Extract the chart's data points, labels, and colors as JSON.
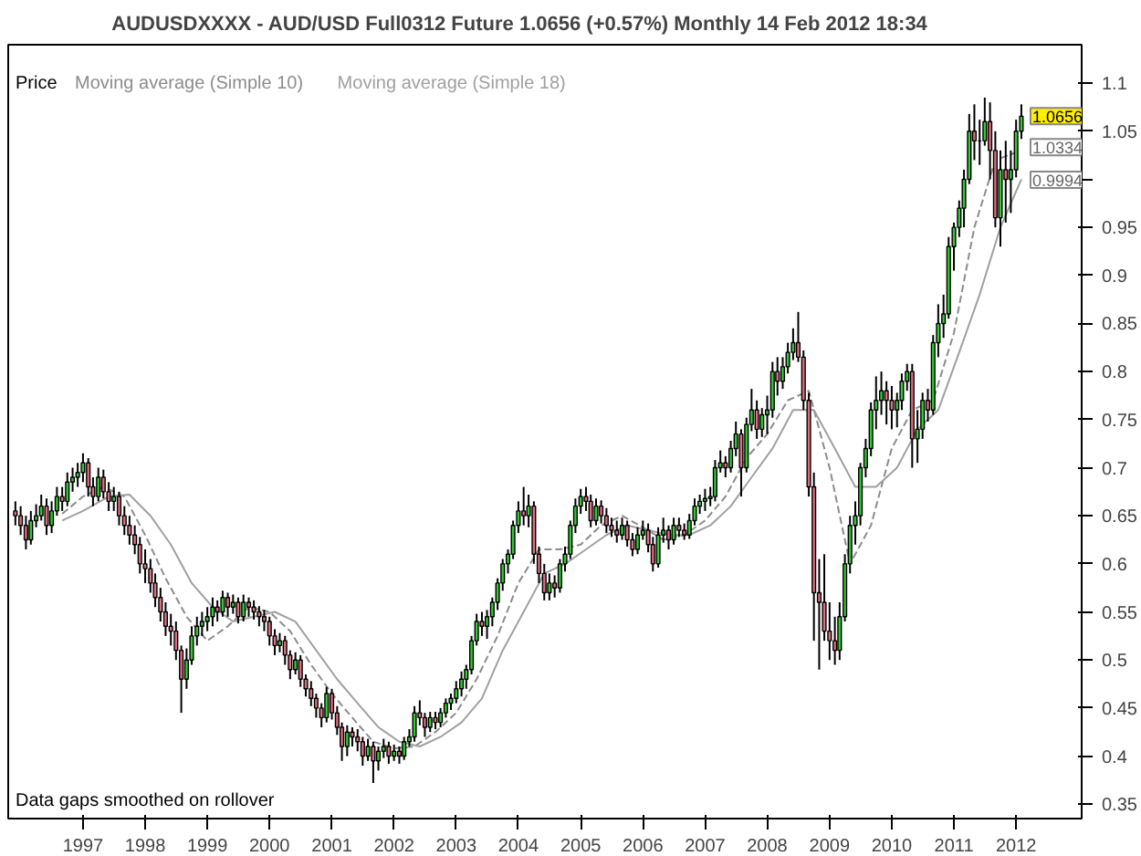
{
  "chart_data": {
    "type": "candlestick",
    "title": "AUDUSDXXXX - AUD/USD Full0312 Future     1.0656 (+0.57%)     Monthly  14 Feb 2012 18:34",
    "legend": "top left",
    "xlim": [
      "1995-10-20",
      "2013-01-20"
    ],
    "xticks": [
      "1997",
      "1998",
      "1999",
      "2000",
      "2001",
      "2002",
      "2003",
      "2004",
      "2005",
      "2006",
      "2007",
      "2008",
      "2009",
      "2010",
      "2011",
      "2012"
    ],
    "ylim": [
      0.335,
      1.14
    ],
    "yticks": [
      0.35,
      0.4,
      0.45,
      0.5,
      0.55,
      0.6,
      0.65,
      0.7,
      0.75,
      0.8,
      0.85,
      0.9,
      0.95,
      {
        "value": 1,
        "label": null
      },
      1.05,
      1.1
    ],
    "grid": false,
    "annotations": [
      "Data gaps smoothed on rollover",
      {
        "text": "1.0656",
        "x": "2012-02",
        "y": 1.0656
      },
      {
        "text": "1.0334",
        "x": "2012-02",
        "y": 1.0334
      },
      {
        "text": "0.9994",
        "x": "2012-02",
        "y": 0.9994
      }
    ],
    "series": [
      {
        "name": "Price",
        "x": [
          "1995-12",
          "1996-01",
          "1996-02",
          "1996-03",
          "1996-04",
          "1996-05",
          "1996-06",
          "1996-07",
          "1996-08",
          "1996-09",
          "1996-10",
          "1996-11",
          "1996-12",
          "1997-01",
          "1997-02",
          "1997-03",
          "1997-04",
          "1997-05",
          "1997-06",
          "1997-07",
          "1997-08",
          "1997-09",
          "1997-10",
          "1997-11",
          "1997-12",
          "1998-01",
          "1998-02",
          "1998-03",
          "1998-04",
          "1998-05",
          "1998-06",
          "1998-07",
          "1998-08",
          "1998-09",
          "1998-10",
          "1998-11",
          "1998-12",
          "1999-01",
          "1999-02",
          "1999-03",
          "1999-04",
          "1999-05",
          "1999-06",
          "1999-07",
          "1999-08",
          "1999-09",
          "1999-10",
          "1999-11",
          "1999-12",
          "2000-01",
          "2000-02",
          "2000-03",
          "2000-04",
          "2000-05",
          "2000-06",
          "2000-07",
          "2000-08",
          "2000-09",
          "2000-10",
          "2000-11",
          "2000-12",
          "2001-01",
          "2001-02",
          "2001-03",
          "2001-04",
          "2001-05",
          "2001-06",
          "2001-07",
          "2001-08",
          "2001-09",
          "2001-10",
          "2001-11",
          "2001-12",
          "2002-01",
          "2002-02",
          "2002-03",
          "2002-04",
          "2002-05",
          "2002-06",
          "2002-07",
          "2002-08",
          "2002-09",
          "2002-10",
          "2002-11",
          "2002-12",
          "2003-01",
          "2003-02",
          "2003-03",
          "2003-04",
          "2003-05",
          "2003-06",
          "2003-07",
          "2003-08",
          "2003-09",
          "2003-10",
          "2003-11",
          "2003-12",
          "2004-01",
          "2004-02",
          "2004-03",
          "2004-04",
          "2004-05",
          "2004-06",
          "2004-07",
          "2004-08",
          "2004-09",
          "2004-10",
          "2004-11",
          "2004-12",
          "2005-01",
          "2005-02",
          "2005-03",
          "2005-04",
          "2005-05",
          "2005-06",
          "2005-07",
          "2005-08",
          "2005-09",
          "2005-10",
          "2005-11",
          "2005-12",
          "2006-01",
          "2006-02",
          "2006-03",
          "2006-04",
          "2006-05",
          "2006-06",
          "2006-07",
          "2006-08",
          "2006-09",
          "2006-10",
          "2006-11",
          "2006-12",
          "2007-01",
          "2007-02",
          "2007-03",
          "2007-04",
          "2007-05",
          "2007-06",
          "2007-07",
          "2007-08",
          "2007-09",
          "2007-10",
          "2007-11",
          "2007-12",
          "2008-01",
          "2008-02",
          "2008-03",
          "2008-04",
          "2008-05",
          "2008-06",
          "2008-07",
          "2008-08",
          "2008-09",
          "2008-10",
          "2008-11",
          "2008-12",
          "2009-01",
          "2009-02",
          "2009-03",
          "2009-04",
          "2009-05",
          "2009-06",
          "2009-07",
          "2009-08",
          "2009-09",
          "2009-10",
          "2009-11",
          "2009-12",
          "2010-01",
          "2010-02",
          "2010-03",
          "2010-04",
          "2010-05",
          "2010-06",
          "2010-07",
          "2010-08",
          "2010-09",
          "2010-10",
          "2010-11",
          "2010-12",
          "2011-01",
          "2011-02",
          "2011-03",
          "2011-04",
          "2011-05",
          "2011-06",
          "2011-07",
          "2011-08",
          "2011-09",
          "2011-10",
          "2011-11",
          "2011-12",
          "2012-01",
          "2012-02"
        ],
        "ohlc": [
          [
            0.655,
            0.665,
            0.64,
            0.65
          ],
          [
            0.65,
            0.66,
            0.63,
            0.64
          ],
          [
            0.64,
            0.65,
            0.615,
            0.625
          ],
          [
            0.625,
            0.655,
            0.62,
            0.645
          ],
          [
            0.645,
            0.662,
            0.638,
            0.65
          ],
          [
            0.65,
            0.672,
            0.645,
            0.66
          ],
          [
            0.66,
            0.668,
            0.63,
            0.64
          ],
          [
            0.64,
            0.665,
            0.632,
            0.655
          ],
          [
            0.655,
            0.68,
            0.65,
            0.67
          ],
          [
            0.67,
            0.68,
            0.655,
            0.665
          ],
          [
            0.665,
            0.695,
            0.66,
            0.685
          ],
          [
            0.685,
            0.7,
            0.675,
            0.69
          ],
          [
            0.69,
            0.705,
            0.68,
            0.695
          ],
          [
            0.695,
            0.715,
            0.685,
            0.705
          ],
          [
            0.705,
            0.71,
            0.67,
            0.68
          ],
          [
            0.68,
            0.69,
            0.66,
            0.67
          ],
          [
            0.67,
            0.7,
            0.665,
            0.69
          ],
          [
            0.69,
            0.698,
            0.668,
            0.675
          ],
          [
            0.675,
            0.685,
            0.655,
            0.665
          ],
          [
            0.665,
            0.68,
            0.655,
            0.67
          ],
          [
            0.67,
            0.675,
            0.64,
            0.65
          ],
          [
            0.65,
            0.66,
            0.63,
            0.64
          ],
          [
            0.64,
            0.65,
            0.62,
            0.63
          ],
          [
            0.63,
            0.64,
            0.61,
            0.62
          ],
          [
            0.62,
            0.628,
            0.59,
            0.6
          ],
          [
            0.6,
            0.615,
            0.58,
            0.595
          ],
          [
            0.595,
            0.605,
            0.57,
            0.58
          ],
          [
            0.58,
            0.59,
            0.555,
            0.565
          ],
          [
            0.565,
            0.575,
            0.54,
            0.55
          ],
          [
            0.55,
            0.56,
            0.525,
            0.535
          ],
          [
            0.535,
            0.548,
            0.515,
            0.53
          ],
          [
            0.53,
            0.54,
            0.5,
            0.51
          ],
          [
            0.51,
            0.515,
            0.445,
            0.48
          ],
          [
            0.48,
            0.512,
            0.47,
            0.5
          ],
          [
            0.5,
            0.535,
            0.495,
            0.525
          ],
          [
            0.525,
            0.545,
            0.515,
            0.535
          ],
          [
            0.535,
            0.55,
            0.525,
            0.54
          ],
          [
            0.54,
            0.555,
            0.53,
            0.545
          ],
          [
            0.545,
            0.565,
            0.535,
            0.555
          ],
          [
            0.555,
            0.562,
            0.54,
            0.55
          ],
          [
            0.55,
            0.572,
            0.545,
            0.565
          ],
          [
            0.565,
            0.57,
            0.545,
            0.555
          ],
          [
            0.555,
            0.568,
            0.548,
            0.56
          ],
          [
            0.56,
            0.565,
            0.538,
            0.545
          ],
          [
            0.545,
            0.568,
            0.54,
            0.56
          ],
          [
            0.56,
            0.565,
            0.545,
            0.555
          ],
          [
            0.555,
            0.562,
            0.542,
            0.55
          ],
          [
            0.55,
            0.556,
            0.535,
            0.545
          ],
          [
            0.545,
            0.552,
            0.53,
            0.54
          ],
          [
            0.54,
            0.545,
            0.515,
            0.525
          ],
          [
            0.525,
            0.532,
            0.505,
            0.515
          ],
          [
            0.515,
            0.528,
            0.508,
            0.52
          ],
          [
            0.52,
            0.525,
            0.495,
            0.505
          ],
          [
            0.505,
            0.51,
            0.48,
            0.49
          ],
          [
            0.49,
            0.508,
            0.485,
            0.5
          ],
          [
            0.5,
            0.505,
            0.472,
            0.48
          ],
          [
            0.48,
            0.485,
            0.462,
            0.47
          ],
          [
            0.47,
            0.478,
            0.452,
            0.46
          ],
          [
            0.46,
            0.465,
            0.44,
            0.45
          ],
          [
            0.45,
            0.455,
            0.43,
            0.44
          ],
          [
            0.44,
            0.472,
            0.435,
            0.465
          ],
          [
            0.465,
            0.47,
            0.438,
            0.445
          ],
          [
            0.445,
            0.452,
            0.422,
            0.43
          ],
          [
            0.43,
            0.435,
            0.395,
            0.41
          ],
          [
            0.41,
            0.432,
            0.4,
            0.425
          ],
          [
            0.425,
            0.43,
            0.41,
            0.42
          ],
          [
            0.42,
            0.428,
            0.405,
            0.415
          ],
          [
            0.415,
            0.42,
            0.39,
            0.4
          ],
          [
            0.4,
            0.418,
            0.395,
            0.41
          ],
          [
            0.41,
            0.415,
            0.372,
            0.395
          ],
          [
            0.395,
            0.41,
            0.385,
            0.405
          ],
          [
            0.405,
            0.418,
            0.398,
            0.41
          ],
          [
            0.41,
            0.415,
            0.392,
            0.4
          ],
          [
            0.4,
            0.412,
            0.395,
            0.405
          ],
          [
            0.405,
            0.41,
            0.392,
            0.4
          ],
          [
            0.4,
            0.42,
            0.396,
            0.415
          ],
          [
            0.415,
            0.428,
            0.41,
            0.42
          ],
          [
            0.42,
            0.452,
            0.415,
            0.445
          ],
          [
            0.445,
            0.458,
            0.432,
            0.44
          ],
          [
            0.44,
            0.445,
            0.42,
            0.43
          ],
          [
            0.43,
            0.446,
            0.425,
            0.44
          ],
          [
            0.44,
            0.446,
            0.428,
            0.435
          ],
          [
            0.435,
            0.45,
            0.43,
            0.445
          ],
          [
            0.445,
            0.46,
            0.44,
            0.455
          ],
          [
            0.455,
            0.465,
            0.448,
            0.46
          ],
          [
            0.46,
            0.478,
            0.455,
            0.47
          ],
          [
            0.47,
            0.488,
            0.462,
            0.48
          ],
          [
            0.48,
            0.495,
            0.47,
            0.49
          ],
          [
            0.49,
            0.525,
            0.485,
            0.52
          ],
          [
            0.52,
            0.548,
            0.515,
            0.54
          ],
          [
            0.54,
            0.55,
            0.525,
            0.535
          ],
          [
            0.535,
            0.552,
            0.522,
            0.545
          ],
          [
            0.545,
            0.565,
            0.535,
            0.56
          ],
          [
            0.56,
            0.585,
            0.552,
            0.58
          ],
          [
            0.58,
            0.605,
            0.572,
            0.6
          ],
          [
            0.6,
            0.615,
            0.59,
            0.61
          ],
          [
            0.61,
            0.645,
            0.605,
            0.64
          ],
          [
            0.64,
            0.665,
            0.632,
            0.655
          ],
          [
            0.655,
            0.68,
            0.64,
            0.65
          ],
          [
            0.65,
            0.672,
            0.638,
            0.66
          ],
          [
            0.66,
            0.665,
            0.6,
            0.61
          ],
          [
            0.61,
            0.618,
            0.58,
            0.59
          ],
          [
            0.59,
            0.6,
            0.562,
            0.57
          ],
          [
            0.57,
            0.59,
            0.562,
            0.58
          ],
          [
            0.58,
            0.588,
            0.565,
            0.575
          ],
          [
            0.575,
            0.605,
            0.57,
            0.6
          ],
          [
            0.6,
            0.618,
            0.592,
            0.61
          ],
          [
            0.61,
            0.645,
            0.605,
            0.64
          ],
          [
            0.64,
            0.668,
            0.632,
            0.66
          ],
          [
            0.66,
            0.678,
            0.652,
            0.67
          ],
          [
            0.67,
            0.68,
            0.655,
            0.665
          ],
          [
            0.665,
            0.672,
            0.638,
            0.645
          ],
          [
            0.645,
            0.668,
            0.64,
            0.66
          ],
          [
            0.66,
            0.666,
            0.642,
            0.65
          ],
          [
            0.65,
            0.658,
            0.632,
            0.64
          ],
          [
            0.64,
            0.648,
            0.628,
            0.635
          ],
          [
            0.635,
            0.645,
            0.622,
            0.63
          ],
          [
            0.63,
            0.648,
            0.625,
            0.64
          ],
          [
            0.64,
            0.645,
            0.618,
            0.625
          ],
          [
            0.625,
            0.632,
            0.608,
            0.615
          ],
          [
            0.615,
            0.638,
            0.61,
            0.63
          ],
          [
            0.63,
            0.645,
            0.625,
            0.635
          ],
          [
            0.635,
            0.642,
            0.612,
            0.62
          ],
          [
            0.62,
            0.628,
            0.592,
            0.6
          ],
          [
            0.6,
            0.638,
            0.596,
            0.63
          ],
          [
            0.63,
            0.648,
            0.622,
            0.635
          ],
          [
            0.635,
            0.64,
            0.615,
            0.625
          ],
          [
            0.625,
            0.648,
            0.62,
            0.64
          ],
          [
            0.64,
            0.648,
            0.628,
            0.635
          ],
          [
            0.635,
            0.642,
            0.625,
            0.63
          ],
          [
            0.63,
            0.652,
            0.626,
            0.645
          ],
          [
            0.645,
            0.668,
            0.64,
            0.66
          ],
          [
            0.66,
            0.672,
            0.652,
            0.665
          ],
          [
            0.665,
            0.678,
            0.655,
            0.668
          ],
          [
            0.668,
            0.68,
            0.66,
            0.67
          ],
          [
            0.67,
            0.708,
            0.665,
            0.7
          ],
          [
            0.7,
            0.718,
            0.695,
            0.705
          ],
          [
            0.705,
            0.712,
            0.69,
            0.7
          ],
          [
            0.7,
            0.728,
            0.695,
            0.72
          ],
          [
            0.72,
            0.748,
            0.712,
            0.735
          ],
          [
            0.735,
            0.74,
            0.67,
            0.7
          ],
          [
            0.7,
            0.752,
            0.695,
            0.745
          ],
          [
            0.745,
            0.782,
            0.738,
            0.76
          ],
          [
            0.76,
            0.77,
            0.73,
            0.74
          ],
          [
            0.74,
            0.762,
            0.732,
            0.755
          ],
          [
            0.755,
            0.775,
            0.735,
            0.76
          ],
          [
            0.76,
            0.81,
            0.752,
            0.8
          ],
          [
            0.8,
            0.815,
            0.775,
            0.79
          ],
          [
            0.79,
            0.815,
            0.782,
            0.805
          ],
          [
            0.805,
            0.83,
            0.798,
            0.82
          ],
          [
            0.82,
            0.845,
            0.812,
            0.83
          ],
          [
            0.83,
            0.862,
            0.81,
            0.815
          ],
          [
            0.815,
            0.822,
            0.76,
            0.77
          ],
          [
            0.77,
            0.778,
            0.67,
            0.68
          ],
          [
            0.68,
            0.695,
            0.52,
            0.57
          ],
          [
            0.57,
            0.605,
            0.49,
            0.56
          ],
          [
            0.56,
            0.61,
            0.52,
            0.53
          ],
          [
            0.53,
            0.56,
            0.5,
            0.52
          ],
          [
            0.52,
            0.545,
            0.495,
            0.51
          ],
          [
            0.51,
            0.56,
            0.5,
            0.545
          ],
          [
            0.545,
            0.61,
            0.54,
            0.6
          ],
          [
            0.6,
            0.65,
            0.59,
            0.64
          ],
          [
            0.64,
            0.665,
            0.62,
            0.65
          ],
          [
            0.65,
            0.705,
            0.64,
            0.7
          ],
          [
            0.7,
            0.73,
            0.69,
            0.72
          ],
          [
            0.72,
            0.768,
            0.712,
            0.76
          ],
          [
            0.76,
            0.795,
            0.74,
            0.77
          ],
          [
            0.77,
            0.8,
            0.755,
            0.78
          ],
          [
            0.78,
            0.79,
            0.745,
            0.77
          ],
          [
            0.77,
            0.785,
            0.74,
            0.76
          ],
          [
            0.76,
            0.778,
            0.742,
            0.77
          ],
          [
            0.77,
            0.798,
            0.76,
            0.79
          ],
          [
            0.79,
            0.808,
            0.78,
            0.8
          ],
          [
            0.8,
            0.808,
            0.7,
            0.73
          ],
          [
            0.73,
            0.76,
            0.705,
            0.74
          ],
          [
            0.74,
            0.778,
            0.73,
            0.77
          ],
          [
            0.77,
            0.782,
            0.748,
            0.76
          ],
          [
            0.76,
            0.838,
            0.755,
            0.83
          ],
          [
            0.83,
            0.87,
            0.815,
            0.85
          ],
          [
            0.85,
            0.88,
            0.835,
            0.86
          ],
          [
            0.86,
            0.94,
            0.855,
            0.93
          ],
          [
            0.93,
            0.955,
            0.905,
            0.95
          ],
          [
            0.95,
            0.978,
            0.94,
            0.97
          ],
          [
            0.97,
            1.01,
            0.95,
            1.0
          ],
          [
            1.0,
            1.068,
            0.995,
            1.05
          ],
          [
            1.05,
            1.078,
            1.02,
            1.04
          ],
          [
            1.04,
            1.062,
            1.015,
            1.04
          ],
          [
            1.04,
            1.085,
            1.035,
            1.06
          ],
          [
            1.06,
            1.08,
            1.0,
            1.03
          ],
          [
            1.03,
            1.05,
            0.95,
            0.96
          ],
          [
            0.96,
            1.03,
            0.93,
            1.01
          ],
          [
            1.01,
            1.04,
            0.955,
            1.0
          ],
          [
            1.0,
            1.03,
            0.965,
            1.01
          ],
          [
            1.01,
            1.062,
            1.002,
            1.05
          ],
          [
            1.05,
            1.078,
            1.042,
            1.0656
          ]
        ]
      },
      {
        "name": "Moving average (Simple 10)",
        "type": "line",
        "color": "#8c8c8c",
        "line_style": "dashed",
        "x": [
          "1996-09",
          "1997-01",
          "1997-05",
          "1997-09",
          "1998-01",
          "1998-05",
          "1998-09",
          "1999-01",
          "1999-05",
          "1999-09",
          "2000-01",
          "2000-05",
          "2000-09",
          "2001-01",
          "2001-05",
          "2001-09",
          "2002-01",
          "2002-05",
          "2002-09",
          "2003-01",
          "2003-05",
          "2003-09",
          "2004-01",
          "2004-05",
          "2004-09",
          "2005-01",
          "2005-05",
          "2005-09",
          "2006-01",
          "2006-05",
          "2006-09",
          "2007-01",
          "2007-05",
          "2007-09",
          "2008-01",
          "2008-05",
          "2008-09",
          "2009-01",
          "2009-05",
          "2009-09",
          "2010-01",
          "2010-05",
          "2010-09",
          "2011-01",
          "2011-05",
          "2011-09",
          "2012-02"
        ],
        "values": [
          0.652,
          0.67,
          0.68,
          0.67,
          0.63,
          0.585,
          0.545,
          0.52,
          0.535,
          0.555,
          0.55,
          0.53,
          0.495,
          0.465,
          0.44,
          0.415,
          0.408,
          0.41,
          0.425,
          0.445,
          0.48,
          0.525,
          0.58,
          0.615,
          0.615,
          0.62,
          0.64,
          0.65,
          0.638,
          0.625,
          0.63,
          0.645,
          0.67,
          0.71,
          0.735,
          0.77,
          0.78,
          0.7,
          0.6,
          0.64,
          0.72,
          0.76,
          0.77,
          0.84,
          0.95,
          1.02,
          1.03
        ]
      },
      {
        "name": "Moving average (Simple 18)",
        "type": "line",
        "color": "#a0a0a0",
        "line_style": "solid",
        "x": [
          "1996-09",
          "1997-01",
          "1997-06",
          "1997-10",
          "1998-02",
          "1998-06",
          "1998-10",
          "1999-02",
          "1999-06",
          "1999-10",
          "2000-02",
          "2000-06",
          "2000-10",
          "2001-02",
          "2001-06",
          "2001-10",
          "2002-02",
          "2002-06",
          "2002-10",
          "2003-02",
          "2003-06",
          "2003-10",
          "2004-02",
          "2004-06",
          "2004-10",
          "2005-02",
          "2005-06",
          "2005-10",
          "2006-02",
          "2006-06",
          "2006-10",
          "2007-02",
          "2007-06",
          "2007-10",
          "2008-02",
          "2008-06",
          "2008-10",
          "2009-02",
          "2009-06",
          "2009-10",
          "2010-02",
          "2010-06",
          "2010-10",
          "2011-02",
          "2011-06",
          "2011-10",
          "2012-02"
        ],
        "values": [
          0.645,
          0.655,
          0.67,
          0.672,
          0.65,
          0.62,
          0.58,
          0.555,
          0.54,
          0.545,
          0.55,
          0.54,
          0.51,
          0.48,
          0.455,
          0.43,
          0.415,
          0.41,
          0.42,
          0.435,
          0.46,
          0.51,
          0.55,
          0.59,
          0.6,
          0.615,
          0.63,
          0.64,
          0.635,
          0.63,
          0.63,
          0.64,
          0.66,
          0.69,
          0.72,
          0.76,
          0.76,
          0.72,
          0.68,
          0.68,
          0.7,
          0.74,
          0.76,
          0.82,
          0.88,
          0.95,
          1.0
        ]
      }
    ]
  }
}
